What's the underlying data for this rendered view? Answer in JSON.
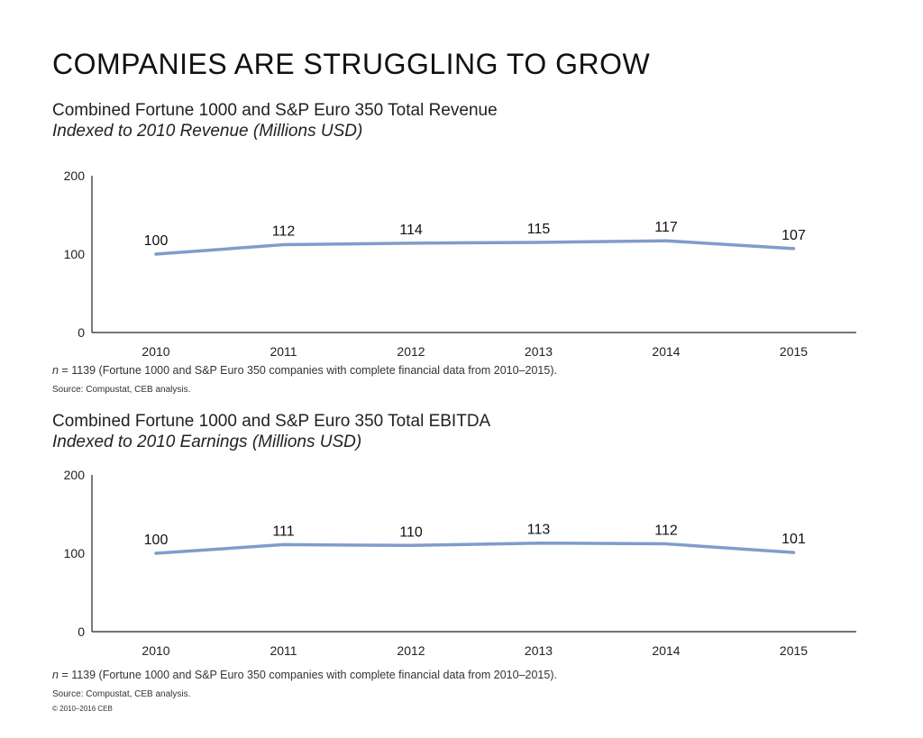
{
  "page_title": "COMPANIES ARE STRUGGLING TO GROW",
  "colors": {
    "line": "#7f9ccc",
    "axis": "#222222"
  },
  "charts": [
    {
      "title": "Combined Fortune 1000 and S&P Euro 350 Total Revenue",
      "subtitle": "Indexed to 2010 Revenue (Millions USD)",
      "note_n": "n",
      "note_rest": " = 1139 (Fortune 1000 and S&P Euro 350 companies with complete financial data from 2010–2015).",
      "source": "Source: Compustat, CEB analysis."
    },
    {
      "title": "Combined Fortune 1000 and S&P Euro 350 Total EBITDA",
      "subtitle": "Indexed to 2010 Earnings (Millions USD)",
      "note_n": "n",
      "note_rest": " = 1139 (Fortune 1000 and S&P Euro 350 companies with complete financial data from 2010–2015).",
      "source": "Source: Compustat, CEB analysis."
    }
  ],
  "copyright": "© 2010–2016 CEB",
  "chart_data": [
    {
      "type": "line",
      "title": "Combined Fortune 1000 and S&P Euro 350 Total Revenue",
      "subtitle": "Indexed to 2010 Revenue (Millions USD)",
      "categories": [
        "2010",
        "2011",
        "2012",
        "2013",
        "2014",
        "2015"
      ],
      "values": [
        100,
        112,
        114,
        115,
        117,
        107
      ],
      "ylim": [
        0,
        200
      ],
      "yticks": [
        0,
        100,
        200
      ],
      "xlabel": "",
      "ylabel": "",
      "grid": false
    },
    {
      "type": "line",
      "title": "Combined Fortune 1000 and S&P Euro 350 Total EBITDA",
      "subtitle": "Indexed to 2010 Earnings (Millions USD)",
      "categories": [
        "2010",
        "2011",
        "2012",
        "2013",
        "2014",
        "2015"
      ],
      "values": [
        100,
        111,
        110,
        113,
        112,
        101
      ],
      "ylim": [
        0,
        200
      ],
      "yticks": [
        0,
        100,
        200
      ],
      "xlabel": "",
      "ylabel": "",
      "grid": false
    }
  ]
}
